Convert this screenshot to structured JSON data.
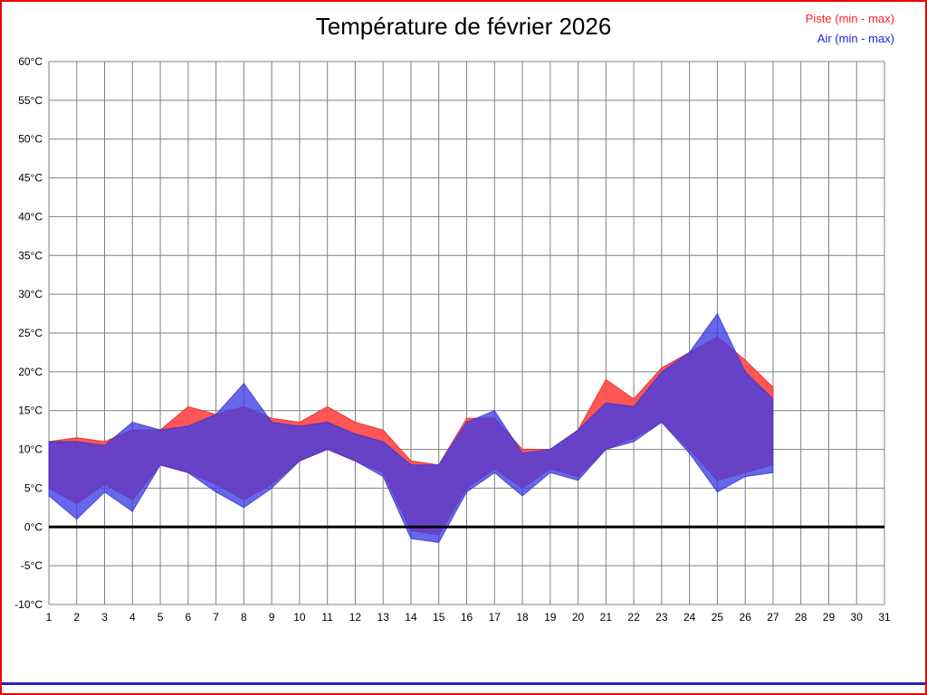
{
  "page": {
    "title": "Température de février 2026",
    "border_color": "#ee0000",
    "footer_line_color": "#2222cc"
  },
  "legend": [
    {
      "label": "Piste (min - max)",
      "color": "#ff2222"
    },
    {
      "label": "Air (min - max)",
      "color": "#2222dd"
    }
  ],
  "chart_data": {
    "type": "area",
    "title": "Température de février 2026",
    "grid": true,
    "grid_color": "#808080",
    "zero_line": true,
    "x_axis": {
      "min": 1,
      "max": 31,
      "ticks": [
        1,
        2,
        3,
        4,
        5,
        6,
        7,
        8,
        9,
        10,
        11,
        12,
        13,
        14,
        15,
        16,
        17,
        18,
        19,
        20,
        21,
        22,
        23,
        24,
        25,
        26,
        27,
        28,
        29,
        30,
        31
      ]
    },
    "y_axis": {
      "min": -10,
      "max": 60,
      "step": 5,
      "unit": "°C"
    },
    "y_ticks": [
      "60°C",
      "55°C",
      "50°C",
      "45°C",
      "40°C",
      "35°C",
      "30°C",
      "25°C",
      "20°C",
      "15°C",
      "10°C",
      "5°C",
      "0°C",
      "-5°C",
      "-10°C"
    ],
    "x": [
      1,
      2,
      3,
      4,
      5,
      6,
      7,
      8,
      9,
      10,
      11,
      12,
      13,
      14,
      15,
      16,
      17,
      18,
      19,
      20,
      21,
      22,
      23,
      24,
      25,
      26,
      27
    ],
    "series": [
      {
        "id": "piste",
        "name": "Piste (min - max)",
        "fill": "#ff4d4d",
        "fill_opacity": 0.95,
        "stroke": "#e83030",
        "max": [
          11,
          11.5,
          11,
          12.5,
          12.5,
          15.5,
          14.5,
          15.5,
          14,
          13.5,
          15.5,
          13.5,
          12.5,
          8.5,
          8,
          14,
          14,
          10,
          10,
          12.5,
          19,
          16.5,
          20.5,
          22.5,
          24.5,
          21.5,
          18
        ],
        "min": [
          5,
          3,
          5.5,
          3.5,
          8,
          7,
          5.5,
          3.5,
          5.5,
          8.5,
          10,
          8.5,
          7,
          -0.5,
          -1,
          5,
          7.5,
          5,
          7.5,
          6.5,
          10,
          11.5,
          13.5,
          10,
          6,
          7,
          8
        ]
      },
      {
        "id": "air",
        "name": "Air (min - max)",
        "fill": "#3c3ce6",
        "fill_opacity": 0.78,
        "stroke": "#3333cc",
        "max": [
          11,
          11,
          10.5,
          13.5,
          12.5,
          13,
          14.5,
          18.5,
          13.5,
          13,
          13.5,
          12,
          11,
          8,
          8,
          13.5,
          15,
          9.5,
          10,
          12.5,
          16,
          15.5,
          20,
          22.5,
          27.5,
          20,
          16.5
        ],
        "min": [
          4,
          1,
          4.5,
          2,
          8,
          7,
          4.5,
          2.5,
          5,
          8.5,
          10,
          8.5,
          6.5,
          -1.5,
          -2,
          4.5,
          7,
          4,
          7,
          6,
          10,
          11,
          13.5,
          9.5,
          4.5,
          6.5,
          7
        ]
      }
    ]
  }
}
